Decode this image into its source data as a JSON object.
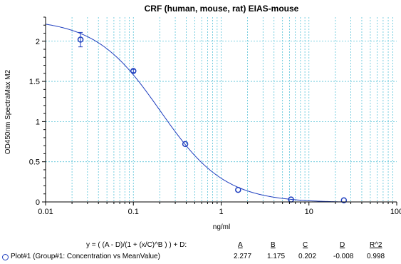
{
  "colors": {
    "curve": "#1f3fbf",
    "marker": "#1f3fbf",
    "grid": "#59c3d9",
    "axis": "#000000"
  },
  "chart_data": {
    "type": "scatter",
    "title": "CRF (human, mouse, rat) EIAS-mouse",
    "xlabel": "ng/ml",
    "ylabel": "OD450nm SpectraMax M2",
    "xscale": "log",
    "xlim": [
      0.01,
      100
    ],
    "ylim": [
      0,
      2.3
    ],
    "grid": true,
    "x_ticks": [
      "0.01",
      "0.1",
      "1",
      "10",
      "100"
    ],
    "y_ticks": [
      "0",
      "0.5",
      "1",
      "1.5",
      "2"
    ],
    "series": [
      {
        "name": "Plot#1 (Group#1: Concentration vs MeanValue)",
        "points": [
          {
            "x": 0.025,
            "y": 2.02,
            "err": 0.09
          },
          {
            "x": 0.1,
            "y": 1.63,
            "err": 0.02
          },
          {
            "x": 0.39,
            "y": 0.72,
            "err": 0.0
          },
          {
            "x": 1.56,
            "y": 0.15,
            "err": 0.0
          },
          {
            "x": 6.25,
            "y": 0.03,
            "err": 0.0
          },
          {
            "x": 25,
            "y": 0.02,
            "err": 0.0
          }
        ]
      }
    ],
    "fit": {
      "equation": "y = ( (A - D)/(1 + (x/C)^B ) ) + D:",
      "headers": [
        "A",
        "B",
        "C",
        "D",
        "R^2"
      ],
      "values": [
        "2.277",
        "1.175",
        "0.202",
        "-0.008",
        "0.998"
      ],
      "A": 2.277,
      "B": 1.175,
      "C": 0.202,
      "D": -0.008
    }
  }
}
